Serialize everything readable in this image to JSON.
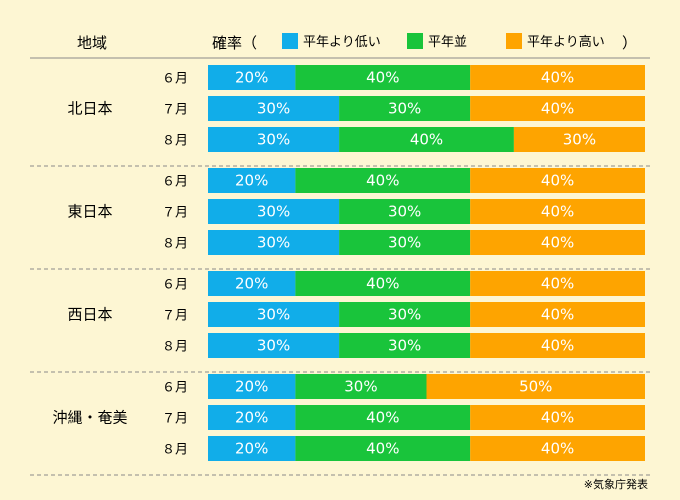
{
  "header": {
    "region_heading": "地域",
    "prob_heading": "確率（",
    "prob_heading_close": "）"
  },
  "legend": [
    {
      "label": "平年より低い",
      "color": "#11ade9"
    },
    {
      "label": "平年並",
      "color": "#19c43b"
    },
    {
      "label": "平年より高い",
      "color": "#fea400"
    }
  ],
  "footnote": "※気象庁発表",
  "chart_data": {
    "type": "bar",
    "orientation": "horizontal-stacked-100",
    "series_colors": [
      "#11ade9",
      "#19c43b",
      "#fea400"
    ],
    "groups": [
      {
        "region": "北日本",
        "rows": [
          {
            "month": "６月",
            "values": [
              20,
              40,
              40
            ]
          },
          {
            "month": "７月",
            "values": [
              30,
              30,
              40
            ]
          },
          {
            "month": "８月",
            "values": [
              30,
              40,
              30
            ]
          }
        ]
      },
      {
        "region": "東日本",
        "rows": [
          {
            "month": "６月",
            "values": [
              20,
              40,
              40
            ]
          },
          {
            "month": "７月",
            "values": [
              30,
              30,
              40
            ]
          },
          {
            "month": "８月",
            "values": [
              30,
              30,
              40
            ]
          }
        ]
      },
      {
        "region": "西日本",
        "rows": [
          {
            "month": "６月",
            "values": [
              20,
              40,
              40
            ]
          },
          {
            "month": "７月",
            "values": [
              30,
              30,
              40
            ]
          },
          {
            "month": "８月",
            "values": [
              30,
              30,
              40
            ]
          }
        ]
      },
      {
        "region": "沖縄・奄美",
        "rows": [
          {
            "month": "６月",
            "values": [
              20,
              30,
              50
            ]
          },
          {
            "month": "７月",
            "values": [
              20,
              40,
              40
            ]
          },
          {
            "month": "８月",
            "values": [
              20,
              40,
              40
            ]
          }
        ]
      }
    ]
  }
}
